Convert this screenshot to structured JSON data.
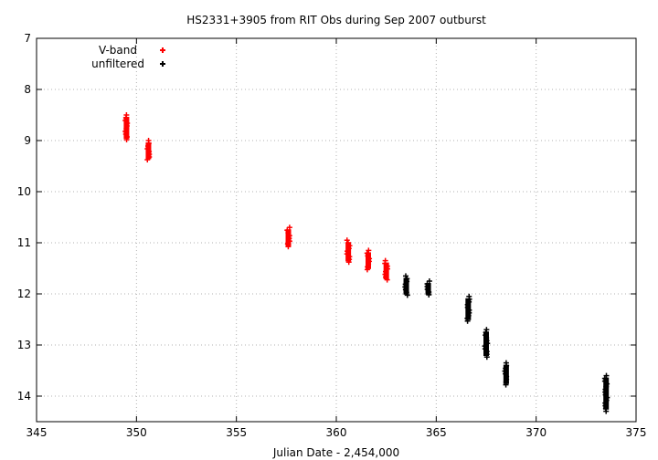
{
  "chart_data": {
    "type": "scatter",
    "title": "HS2331+3905 from RIT Obs during Sep 2007 outburst",
    "xlabel": "Julian Date - 2,454,000",
    "ylabel": "",
    "xlim": [
      345,
      375
    ],
    "ylim": [
      14.5,
      7
    ],
    "y_inverted": true,
    "x_ticks": [
      "345",
      "350",
      "355",
      "360",
      "365",
      "370",
      "375"
    ],
    "y_ticks": [
      "7",
      "8",
      "9",
      "10",
      "11",
      "12",
      "13",
      "14"
    ],
    "grid": true,
    "legend_position": "top-left",
    "series": [
      {
        "name": "V-band",
        "color": "#ff0000",
        "marker": "plus",
        "points": [
          {
            "x": 349.5,
            "y_min": 8.5,
            "y_max": 9.0
          },
          {
            "x": 350.6,
            "y_min": 9.0,
            "y_max": 9.4
          },
          {
            "x": 357.6,
            "y_min": 10.7,
            "y_max": 11.1
          },
          {
            "x": 360.6,
            "y_min": 10.95,
            "y_max": 11.4
          },
          {
            "x": 361.6,
            "y_min": 11.15,
            "y_max": 11.55
          },
          {
            "x": 362.5,
            "y_min": 11.35,
            "y_max": 11.75
          }
        ]
      },
      {
        "name": "unfiltered",
        "color": "#000000",
        "marker": "plus",
        "points": [
          {
            "x": 363.5,
            "y_min": 11.65,
            "y_max": 12.05
          },
          {
            "x": 364.6,
            "y_min": 11.75,
            "y_max": 12.05
          },
          {
            "x": 366.6,
            "y_min": 12.05,
            "y_max": 12.55
          },
          {
            "x": 367.5,
            "y_min": 12.7,
            "y_max": 13.25
          },
          {
            "x": 368.5,
            "y_min": 13.35,
            "y_max": 13.8
          },
          {
            "x": 373.5,
            "y_min": 13.6,
            "y_max": 14.3
          }
        ]
      }
    ]
  }
}
